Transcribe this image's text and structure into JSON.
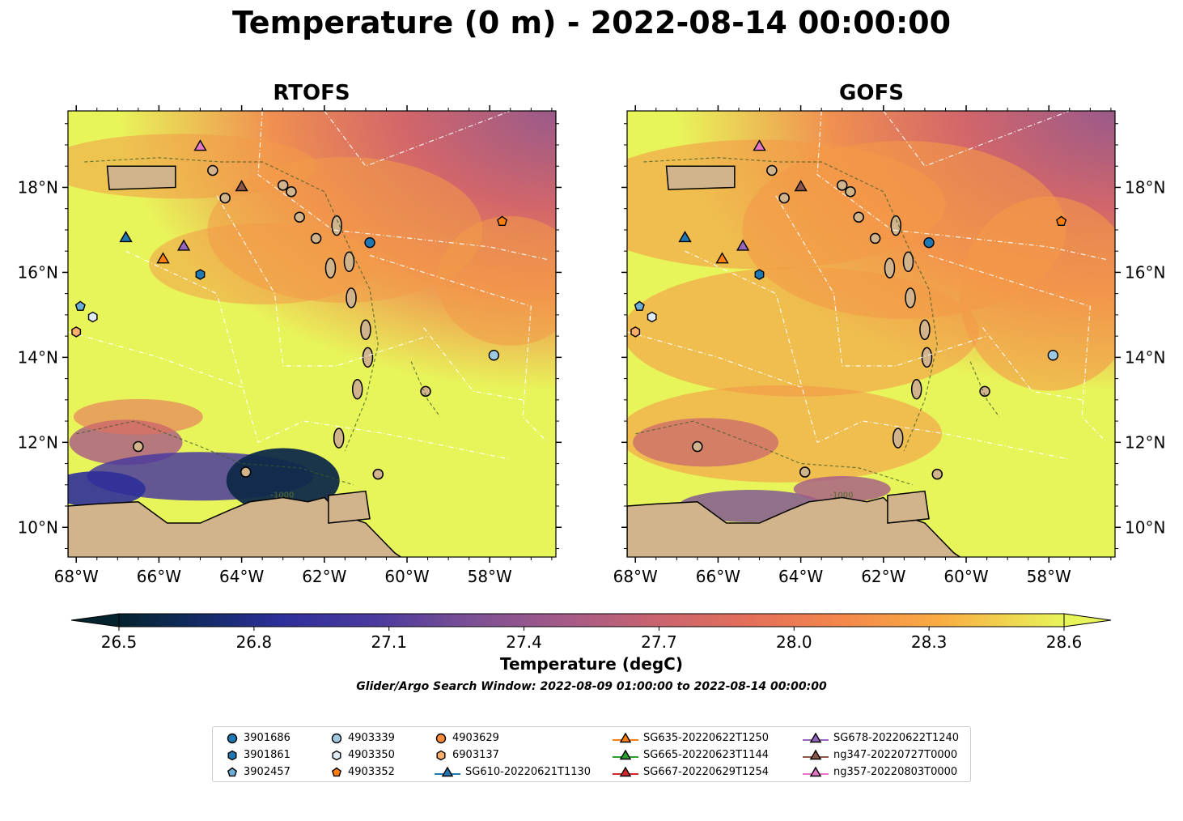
{
  "title": "Temperature (0 m) - 2022-08-14 00:00:00",
  "panels": [
    {
      "name": "RTOFS"
    },
    {
      "name": "GOFS"
    }
  ],
  "map": {
    "lon_range": [
      -68.2,
      -56.4
    ],
    "lat_range": [
      9.3,
      19.8
    ],
    "lon_ticks": [
      "68°W",
      "66°W",
      "64°W",
      "62°W",
      "60°W",
      "58°W"
    ],
    "lat_ticks": [
      "18°N",
      "16°N",
      "14°N",
      "12°N",
      "10°N"
    ],
    "contour_label": "-1000",
    "land_color": "#d2b48c",
    "ocean_warm_color": "#e8f55a"
  },
  "colorbar": {
    "label": "Temperature (degC)",
    "ticks": [
      "26.5",
      "26.8",
      "27.1",
      "27.4",
      "27.7",
      "28.0",
      "28.3",
      "28.6"
    ],
    "colormap": "thermal",
    "range": [
      26.5,
      28.6
    ]
  },
  "subtitle": "Glider/Argo Search Window: 2022-08-09 01:00:00 to 2022-08-14 00:00:00",
  "legend": {
    "items": [
      {
        "label": "3901686",
        "marker": "circle",
        "color": "#1f77b4"
      },
      {
        "label": "3901861",
        "marker": "hexagon",
        "color": "#1f77b4"
      },
      {
        "label": "3902457",
        "marker": "pentagon",
        "color": "#6baed6"
      },
      {
        "label": "4903339",
        "marker": "circle",
        "color": "#9ecae1"
      },
      {
        "label": "4903350",
        "marker": "hexagon",
        "color": "#deebf7"
      },
      {
        "label": "4903352",
        "marker": "pentagon",
        "color": "#ff7f0e"
      },
      {
        "label": "4903629",
        "marker": "circle",
        "color": "#fd8d3c"
      },
      {
        "label": "6903137",
        "marker": "hexagon",
        "color": "#fdae6b"
      },
      {
        "label": "SG610-20220621T1130",
        "marker": "triangle",
        "color": "#1f77b4"
      },
      {
        "label": "SG635-20220622T1250",
        "marker": "triangle",
        "color": "#ff7f0e"
      },
      {
        "label": "SG665-20220623T1144",
        "marker": "triangle",
        "color": "#2ca02c"
      },
      {
        "label": "SG667-20220629T1254",
        "marker": "triangle",
        "color": "#d62728"
      },
      {
        "label": "SG678-20220622T1240",
        "marker": "triangle",
        "color": "#9467bd"
      },
      {
        "label": "ng347-20220727T0000",
        "marker": "triangle",
        "color": "#8c564b"
      },
      {
        "label": "ng357-20220803T0000",
        "marker": "triangle",
        "color": "#e377c2"
      }
    ]
  },
  "stations": [
    {
      "label": "3901686",
      "lon": -60.9,
      "lat": 16.7
    },
    {
      "label": "3901861",
      "lon": -65.0,
      "lat": 15.95
    },
    {
      "label": "3902457",
      "lon": -67.9,
      "lat": 15.2
    },
    {
      "label": "4903339",
      "lon": -57.9,
      "lat": 14.05
    },
    {
      "label": "4903350",
      "lon": -67.6,
      "lat": 14.95
    },
    {
      "label": "4903352",
      "lon": -57.7,
      "lat": 17.2
    },
    {
      "label": "6903137",
      "lon": -68.0,
      "lat": 14.6
    },
    {
      "label": "SG610-20220621T1130",
      "lon": -66.8,
      "lat": 16.8
    },
    {
      "label": "SG635-20220622T1250",
      "lon": -65.9,
      "lat": 16.3
    },
    {
      "label": "SG678-20220622T1240",
      "lon": -65.4,
      "lat": 16.6
    },
    {
      "label": "ng347-20220727T0000",
      "lon": -64.0,
      "lat": 18.0
    },
    {
      "label": "ng357-20220803T0000",
      "lon": -65.0,
      "lat": 18.95
    }
  ]
}
